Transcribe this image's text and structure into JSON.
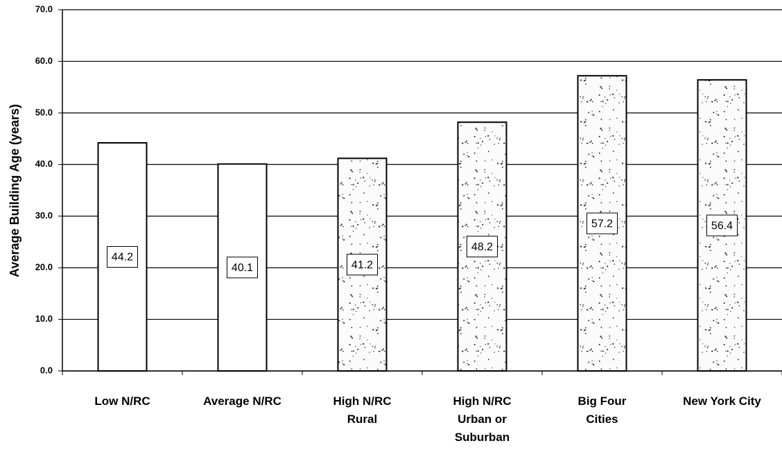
{
  "chart_data": {
    "type": "bar",
    "y_label": "Average Building Age (years)",
    "categories": [
      "Low N/RC",
      "Average N/RC",
      "High N/RC\nRural",
      "High N/RC\nUrban or\nSuburban",
      "Big Four\nCities",
      "New York City"
    ],
    "values": [
      44.2,
      40.1,
      41.2,
      48.2,
      57.2,
      56.4
    ],
    "fills": [
      "solid",
      "solid",
      "stippled",
      "stippled",
      "stippled",
      "stippled"
    ],
    "color": "#ffffff",
    "ylim": [
      0,
      70
    ],
    "yticks": [
      {
        "value": 0,
        "label": "0.0"
      },
      {
        "value": 10,
        "label": "10.0"
      },
      {
        "value": 20,
        "label": "20.0"
      },
      {
        "value": 30,
        "label": "30.0"
      },
      {
        "value": 40,
        "label": "40.0"
      },
      {
        "value": 50,
        "label": "50.0"
      },
      {
        "value": 60,
        "label": "60.0"
      },
      {
        "value": 70,
        "label": "70.0"
      }
    ],
    "grid": true
  }
}
